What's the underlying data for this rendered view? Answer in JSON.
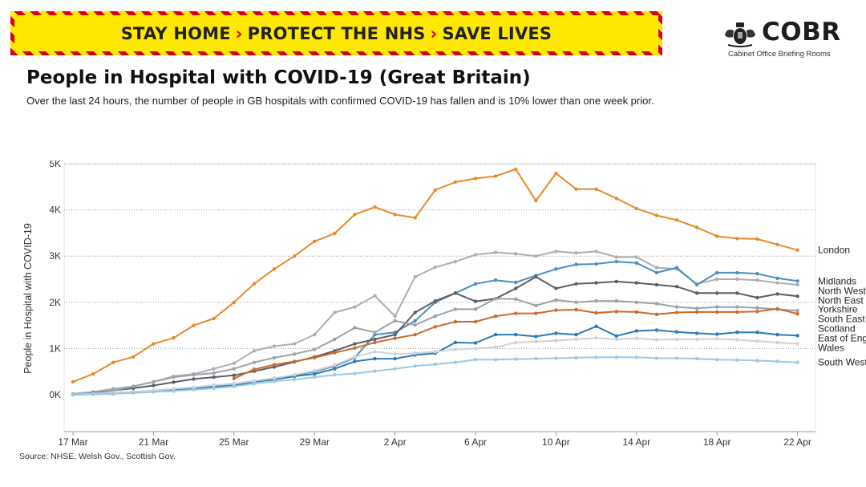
{
  "banner": {
    "part1": "STAY HOME",
    "part2": "PROTECT THE NHS",
    "part3": "SAVE LIVES",
    "chevron": "›",
    "bg_color": "#ffe800",
    "stripe_color": "#d6001c"
  },
  "logo": {
    "title": "COBR",
    "subtitle": "Cabinet Office Briefing Rooms",
    "icon": "royal-crest-icon"
  },
  "header": {
    "title": "People in Hospital with COVID-19 (Great Britain)",
    "subtitle": "Over the last 24 hours, the number of people in GB hospitals with confirmed COVID-19 has fallen and is 10% lower than one week prior."
  },
  "source": "Source: NHSE, Welsh Gov., Scottish Gov.",
  "chart_data": {
    "type": "line",
    "title": "",
    "xlabel": "",
    "ylabel": "People in Hospital with COVID-19",
    "ylim": [
      -800,
      5000
    ],
    "yticks": [
      0,
      1000,
      2000,
      3000,
      4000,
      5000
    ],
    "ytick_labels": [
      "0K",
      "1K",
      "2K",
      "3K",
      "4K",
      "5K"
    ],
    "x_start": "17 Mar",
    "x_end": "22 Apr",
    "xtick_labels": [
      "17 Mar",
      "21 Mar",
      "25 Mar",
      "29 Mar",
      "2 Apr",
      "6 Apr",
      "10 Apr",
      "14 Apr",
      "18 Apr",
      "22 Apr"
    ],
    "xtick_positions": [
      0,
      4,
      8,
      12,
      16,
      20,
      24,
      28,
      32,
      36
    ],
    "grid": "horizontal dotted",
    "legend": "series names at line ends (right)",
    "series": [
      {
        "name": "London",
        "color": "#e8892b",
        "start": 0,
        "values": [
          280,
          450,
          700,
          820,
          1100,
          1230,
          1500,
          1650,
          2000,
          2400,
          2720,
          3000,
          3320,
          3490,
          3900,
          4060,
          3900,
          3830,
          4430,
          4600,
          4680,
          4730,
          4880,
          4200,
          4790,
          4450,
          4450,
          4250,
          4030,
          3880,
          3780,
          3620,
          3430,
          3380,
          3370,
          3250,
          3130
        ]
      },
      {
        "name": "North West",
        "color": "#aab0b8",
        "start": 0,
        "values": [
          20,
          60,
          130,
          180,
          280,
          400,
          450,
          560,
          680,
          950,
          1050,
          1100,
          1300,
          1780,
          1900,
          2140,
          1700,
          2550,
          2760,
          2880,
          3030,
          3080,
          3050,
          3000,
          3100,
          3070,
          3100,
          2980,
          2980,
          2750,
          2720,
          2400,
          2500,
          2500,
          2480,
          2420,
          2380
        ]
      },
      {
        "name": "Midlands",
        "color": "#4a8fc0",
        "start": 0,
        "values": [
          0,
          20,
          40,
          60,
          90,
          120,
          150,
          190,
          240,
          300,
          350,
          420,
          500,
          620,
          800,
          1300,
          1350,
          1600,
          2000,
          2200,
          2400,
          2480,
          2430,
          2580,
          2720,
          2820,
          2830,
          2880,
          2850,
          2640,
          2750,
          2380,
          2640,
          2640,
          2620,
          2520,
          2460
        ]
      },
      {
        "name": "North East & Yorkshire",
        "color": "#5b5f66",
        "start": 0,
        "values": [
          0,
          40,
          90,
          140,
          200,
          270,
          340,
          380,
          420,
          510,
          600,
          710,
          820,
          950,
          1100,
          1200,
          1300,
          1780,
          2030,
          2200,
          2020,
          2080,
          2300,
          2550,
          2300,
          2400,
          2420,
          2450,
          2420,
          2380,
          2340,
          2200,
          2200,
          2200,
          2100,
          2180,
          2130
        ]
      },
      {
        "name": "South East",
        "color": "#9ea3a9",
        "start": 0,
        "values": [
          10,
          30,
          90,
          180,
          280,
          380,
          430,
          470,
          560,
          700,
          800,
          880,
          980,
          1200,
          1450,
          1350,
          1600,
          1510,
          1700,
          1850,
          1850,
          2080,
          2070,
          1930,
          2050,
          2000,
          2030,
          2030,
          2000,
          1970,
          1900,
          1870,
          1900,
          1900,
          1880,
          1850,
          1820
        ]
      },
      {
        "name": "Scotland",
        "color": "#cc6a2c",
        "start": 8,
        "values": [
          350,
          550,
          650,
          720,
          800,
          910,
          1010,
          1130,
          1220,
          1300,
          1470,
          1580,
          1580,
          1700,
          1760,
          1760,
          1830,
          1840,
          1770,
          1800,
          1790,
          1740,
          1780,
          1790,
          1790,
          1790,
          1800,
          1860,
          1750
        ]
      },
      {
        "name": "East of England",
        "color": "#2b7bb9",
        "start": 0,
        "values": [
          0,
          10,
          20,
          50,
          70,
          100,
          130,
          160,
          200,
          280,
          330,
          400,
          450,
          560,
          720,
          780,
          780,
          860,
          900,
          1130,
          1120,
          1300,
          1300,
          1260,
          1330,
          1300,
          1480,
          1270,
          1380,
          1400,
          1360,
          1330,
          1310,
          1350,
          1350,
          1300,
          1280
        ]
      },
      {
        "name": "Wales",
        "color": "#cfd3d7",
        "start": 0,
        "values": [
          0,
          20,
          40,
          60,
          90,
          130,
          160,
          210,
          240,
          300,
          360,
          430,
          520,
          640,
          820,
          930,
          880,
          900,
          930,
          980,
          1000,
          1030,
          1130,
          1150,
          1170,
          1200,
          1230,
          1200,
          1220,
          1190,
          1200,
          1200,
          1210,
          1190,
          1160,
          1130,
          1100
        ]
      },
      {
        "name": "South West",
        "color": "#9cc9e6",
        "start": 0,
        "values": [
          0,
          10,
          20,
          40,
          60,
          80,
          110,
          140,
          180,
          240,
          290,
          330,
          380,
          430,
          460,
          510,
          560,
          620,
          660,
          700,
          760,
          760,
          770,
          780,
          790,
          800,
          810,
          810,
          810,
          790,
          790,
          780,
          760,
          750,
          740,
          720,
          700
        ]
      }
    ]
  }
}
